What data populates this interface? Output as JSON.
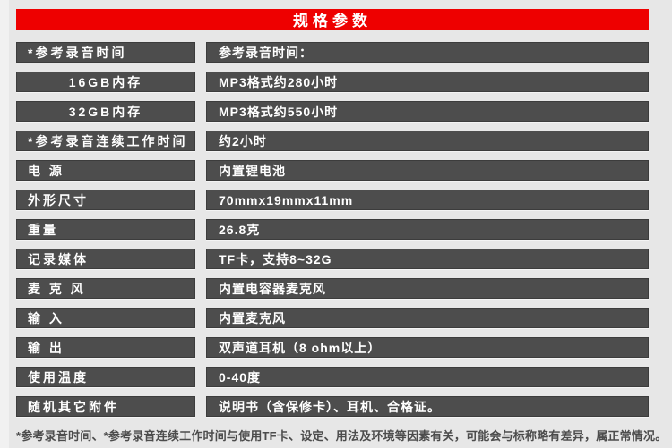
{
  "header": {
    "title": "规格参数"
  },
  "spec_table": {
    "rows": [
      {
        "label": "*参考录音时间",
        "value": "参考录音时间：",
        "label_align": "left"
      },
      {
        "label": "16GB内存",
        "value": "MP3格式约280小时",
        "label_align": "center"
      },
      {
        "label": "32GB内存",
        "value": "MP3格式约550小时",
        "label_align": "center"
      },
      {
        "label": "*参考录音连续工作时间",
        "value": "约2小时",
        "label_align": "left"
      },
      {
        "label": "电 源",
        "value": "内置锂电池",
        "label_align": "left"
      },
      {
        "label": "外形尺寸",
        "value": "70mmx19mmx11mm",
        "label_align": "left"
      },
      {
        "label": "重量",
        "value": "26.8克",
        "label_align": "left"
      },
      {
        "label": "记录媒体",
        "value": "TF卡，支持8~32G",
        "label_align": "left"
      },
      {
        "label": "麦 克 风",
        "value": "内置电容器麦克风",
        "label_align": "left"
      },
      {
        "label": "输 入",
        "value": "内置麦克风",
        "label_align": "left"
      },
      {
        "label": "输 出",
        "value": "双声道耳机（8 ohm以上）",
        "label_align": "left"
      },
      {
        "label": "使用温度",
        "value": "0-40度",
        "label_align": "left"
      },
      {
        "label": "随机其它附件",
        "value": "说明书（含保修卡）、耳机、合格证。",
        "label_align": "left"
      }
    ]
  },
  "footer": {
    "note": "*参考录音时间、*参考录音连续工作时间与使用TF卡、设定、用法及环境等因素有关，可能会与标称略有差异，属正常情况。"
  },
  "colors": {
    "accent_red": "#ee0000",
    "bar_gray": "#4d4d4d",
    "page_bg": "#e7e7e7",
    "bar_text": "#ffffff",
    "footnote_text": "#4c4c4c"
  }
}
